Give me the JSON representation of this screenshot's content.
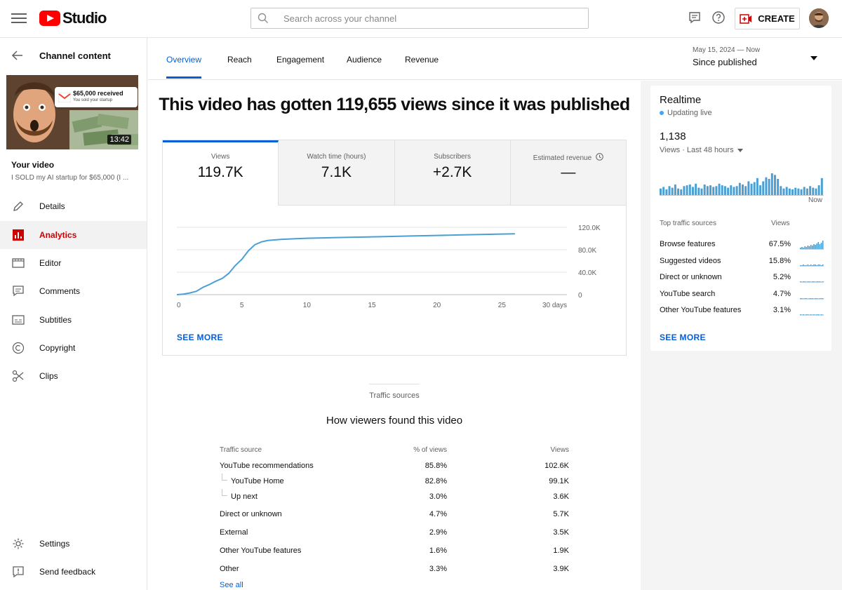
{
  "header": {
    "logo_text": "Studio",
    "search_placeholder": "Search across your channel",
    "create_label": "CREATE"
  },
  "sidebar": {
    "back_label": "Channel content",
    "thumbnail": {
      "duration": "13:42",
      "notif_title": "$65,000 received",
      "notif_sub": "You sold your startup"
    },
    "your_video_label": "Your video",
    "video_title": "I SOLD my AI startup for $65,000 (I ...",
    "items": [
      {
        "label": "Details",
        "icon": "pencil-icon"
      },
      {
        "label": "Analytics",
        "icon": "analytics-icon",
        "active": true
      },
      {
        "label": "Editor",
        "icon": "editor-icon"
      },
      {
        "label": "Comments",
        "icon": "comments-icon"
      },
      {
        "label": "Subtitles",
        "icon": "subtitles-icon"
      },
      {
        "label": "Copyright",
        "icon": "copyright-icon"
      },
      {
        "label": "Clips",
        "icon": "scissors-icon"
      }
    ],
    "bottom_items": [
      {
        "label": "Settings",
        "icon": "gear-icon"
      },
      {
        "label": "Send feedback",
        "icon": "feedback-icon"
      }
    ]
  },
  "tabs": [
    "Overview",
    "Reach",
    "Engagement",
    "Audience",
    "Revenue"
  ],
  "active_tab": "Overview",
  "date_range": {
    "range": "May 15, 2024 — Now",
    "label": "Since published"
  },
  "main": {
    "headline": "This video has gotten 119,655 views since it was published",
    "metrics": [
      {
        "label": "Views",
        "value": "119.7K",
        "active": true
      },
      {
        "label": "Watch time (hours)",
        "value": "7.1K"
      },
      {
        "label": "Subscribers",
        "value": "+2.7K"
      },
      {
        "label": "Estimated revenue",
        "value": "—"
      }
    ],
    "see_more": "SEE MORE"
  },
  "chart_data": {
    "type": "line",
    "series": [
      {
        "x": [
          0,
          0.5,
          1,
          1.5,
          2,
          2.5,
          3,
          3.5,
          4,
          4.5,
          5,
          5.5,
          6,
          6.5,
          7,
          7.5,
          8,
          9,
          10,
          12,
          14,
          16,
          18,
          20,
          22,
          24,
          26
        ],
        "values": [
          0,
          1000,
          3000,
          6000,
          13000,
          18000,
          24000,
          29000,
          38000,
          52000,
          63000,
          78000,
          89000,
          94000,
          96500,
          97500,
          98500,
          99500,
          100500,
          101500,
          102500,
          103500,
          104500,
          105500,
          106500,
          107500,
          108500
        ]
      }
    ],
    "x_ticks": [
      "0",
      "5",
      "10",
      "15",
      "20",
      "25",
      "30 days"
    ],
    "x_tick_values": [
      0,
      5,
      10,
      15,
      20,
      25,
      30
    ],
    "y_ticks": [
      "0",
      "40.0K",
      "80.0K",
      "120.0K"
    ],
    "y_tick_values": [
      0,
      40000,
      80000,
      120000
    ],
    "xlim": [
      0,
      30
    ],
    "ylim": [
      0,
      120000
    ],
    "color": "#4a9fd4",
    "grid": true
  },
  "traffic": {
    "section_label": "Traffic sources",
    "title": "How viewers found this video",
    "headers": [
      "Traffic source",
      "% of views",
      "Views"
    ],
    "rows": [
      {
        "source": "YouTube recommendations",
        "pct": "85.8%",
        "views": "102.6K",
        "sub": false
      },
      {
        "source": "YouTube Home",
        "pct": "82.8%",
        "views": "99.1K",
        "sub": true
      },
      {
        "source": "Up next",
        "pct": "3.0%",
        "views": "3.6K",
        "sub": true
      },
      {
        "source": "Direct or unknown",
        "pct": "4.7%",
        "views": "5.7K",
        "sub": false
      },
      {
        "source": "External",
        "pct": "2.9%",
        "views": "3.5K",
        "sub": false
      },
      {
        "source": "Other YouTube features",
        "pct": "1.6%",
        "views": "1.9K",
        "sub": false
      },
      {
        "source": "Other",
        "pct": "3.3%",
        "views": "3.9K",
        "sub": false
      }
    ],
    "see_all": "See all"
  },
  "realtime": {
    "title": "Realtime",
    "live": "Updating live",
    "count": "1,138",
    "views_label": "Views · Last 48 hours",
    "now_label": "Now",
    "bars": [
      9,
      11,
      8,
      12,
      10,
      14,
      9,
      8,
      12,
      13,
      14,
      11,
      15,
      10,
      9,
      14,
      12,
      13,
      11,
      12,
      15,
      13,
      12,
      10,
      13,
      11,
      12,
      16,
      14,
      12,
      18,
      15,
      17,
      22,
      13,
      18,
      23,
      21,
      28,
      26,
      21,
      12,
      9,
      11,
      9,
      8,
      10,
      9,
      8,
      11,
      9,
      12,
      10,
      9,
      13,
      22
    ],
    "sources_header": "Top traffic sources",
    "views_header": "Views",
    "sources": [
      {
        "name": "Browse features",
        "pct": "67.5%",
        "spark": [
          2,
          3,
          2,
          4,
          3,
          5,
          4,
          6,
          5,
          7,
          6,
          8,
          10,
          7,
          9,
          12
        ]
      },
      {
        "name": "Suggested videos",
        "pct": "15.8%",
        "spark": [
          1,
          1,
          2,
          1,
          1,
          2,
          1,
          2,
          1,
          2,
          2,
          1,
          2,
          2,
          1,
          2
        ]
      },
      {
        "name": "Direct or unknown",
        "pct": "5.2%",
        "spark": [
          1,
          0,
          1,
          1,
          0,
          1,
          1,
          0,
          1,
          1,
          0,
          1,
          1,
          1,
          0,
          1
        ]
      },
      {
        "name": "YouTube search",
        "pct": "4.7%",
        "spark": [
          1,
          1,
          0,
          1,
          1,
          0,
          1,
          1,
          1,
          0,
          1,
          1,
          0,
          1,
          1,
          1
        ]
      },
      {
        "name": "Other YouTube features",
        "pct": "3.1%",
        "spark": [
          1,
          0,
          1,
          0,
          1,
          1,
          0,
          1,
          0,
          1,
          0,
          1,
          1,
          0,
          1,
          0
        ]
      }
    ],
    "see_more": "SEE MORE"
  }
}
